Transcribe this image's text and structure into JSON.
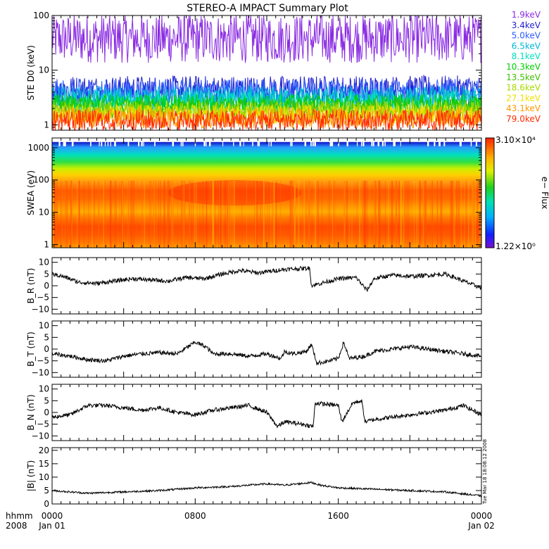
{
  "title": "STEREO-A IMPACT Summary Plot",
  "stamp": "Tue Mar 18 18:08:12 2008",
  "x_axis": {
    "row1_label": "hhmm",
    "row2_label": "2008",
    "ticks": [
      {
        "hours": 0,
        "hhmm": "0000",
        "date": "Jan 01"
      },
      {
        "hours": 8,
        "hhmm": "0800",
        "date": ""
      },
      {
        "hours": 16,
        "hhmm": "1600",
        "date": ""
      },
      {
        "hours": 24,
        "hhmm": "0000",
        "date": "Jan 02"
      }
    ]
  },
  "chart_data": [
    {
      "type": "line",
      "ylabel": "STE D0 (keV)",
      "yscale": "log",
      "ylim": [
        0.8,
        100
      ],
      "yticks": [
        {
          "v": 1,
          "t": "1"
        },
        {
          "v": 10,
          "t": "10"
        },
        {
          "v": 100,
          "t": "100"
        }
      ],
      "legend_placement": "right",
      "series": [
        {
          "name": "1.9keV",
          "color": "#8a2be2",
          "base": 38,
          "jitter": 0.45
        },
        {
          "name": "3.4keV",
          "color": "#1f1fd0",
          "base": 4.5,
          "jitter": 0.25
        },
        {
          "name": "5.0keV",
          "color": "#2a5cff",
          "base": 3.9,
          "jitter": 0.25
        },
        {
          "name": "6.5keV",
          "color": "#00b7d8",
          "base": 3.1,
          "jitter": 0.22
        },
        {
          "name": "8.1keV",
          "color": "#00e0c0",
          "base": 2.7,
          "jitter": 0.2
        },
        {
          "name": "10.3keV",
          "color": "#00d000",
          "base": 2.4,
          "jitter": 0.18
        },
        {
          "name": "13.5keV",
          "color": "#40c000",
          "base": 2.0,
          "jitter": 0.18
        },
        {
          "name": "18.6keV",
          "color": "#a8d800",
          "base": 1.8,
          "jitter": 0.18
        },
        {
          "name": "27.1keV",
          "color": "#f0e000",
          "base": 1.55,
          "jitter": 0.18
        },
        {
          "name": "43.1keV",
          "color": "#ff9a00",
          "base": 1.35,
          "jitter": 0.2
        },
        {
          "name": "79.0keV",
          "color": "#ff2a00",
          "base": 1.2,
          "jitter": 0.2
        }
      ]
    },
    {
      "type": "heatmap",
      "ylabel": "SWEA (eV)",
      "yscale": "log",
      "ylim": [
        0.8,
        2000
      ],
      "yticks": [
        {
          "v": 1,
          "t": "1"
        },
        {
          "v": 10,
          "t": "10"
        },
        {
          "v": 100,
          "t": "100"
        },
        {
          "v": 1000,
          "t": "1000"
        }
      ],
      "colorbar": {
        "max": "3.10×10⁴",
        "min": "1.22×10⁰",
        "label": "e− Flux",
        "placement": "right"
      }
    },
    {
      "type": "line",
      "ylabel": "B_R (nT)",
      "ylim": [
        -12,
        12
      ],
      "yticks": [
        {
          "v": -10,
          "t": "−10"
        },
        {
          "v": -5,
          "t": "−5"
        },
        {
          "v": 0,
          "t": "0"
        },
        {
          "v": 5,
          "t": "5"
        },
        {
          "v": 10,
          "t": "10"
        }
      ],
      "keypoints": [
        [
          0,
          5
        ],
        [
          0.6,
          4
        ],
        [
          1.5,
          1.5
        ],
        [
          2.5,
          1
        ],
        [
          3.5,
          2
        ],
        [
          4.5,
          3
        ],
        [
          5.5,
          2.5
        ],
        [
          6.5,
          2
        ],
        [
          7.5,
          3.5
        ],
        [
          8.5,
          3
        ],
        [
          9.5,
          5
        ],
        [
          10.5,
          6.5
        ],
        [
          11.5,
          5.5
        ],
        [
          12,
          6
        ],
        [
          13,
          7
        ],
        [
          14.4,
          7.5
        ],
        [
          14.5,
          0
        ],
        [
          15,
          1
        ],
        [
          16,
          3
        ],
        [
          17,
          3.5
        ],
        [
          17.6,
          -2
        ],
        [
          18,
          3
        ],
        [
          19,
          4.5
        ],
        [
          20,
          4
        ],
        [
          21,
          4.5
        ],
        [
          22,
          5
        ],
        [
          23,
          2
        ],
        [
          24,
          -1
        ]
      ],
      "noise": 0.9
    },
    {
      "type": "line",
      "ylabel": "B_T (nT)",
      "ylim": [
        -12,
        12
      ],
      "yticks": [
        {
          "v": -10,
          "t": "−10"
        },
        {
          "v": -5,
          "t": "−5"
        },
        {
          "v": 0,
          "t": "0"
        },
        {
          "v": 5,
          "t": "5"
        },
        {
          "v": 10,
          "t": "10"
        }
      ],
      "keypoints": [
        [
          0,
          -2
        ],
        [
          1,
          -3
        ],
        [
          2,
          -4.5
        ],
        [
          3,
          -5
        ],
        [
          4,
          -3
        ],
        [
          5,
          -2
        ],
        [
          6,
          -1.5
        ],
        [
          7,
          -2
        ],
        [
          8,
          3
        ],
        [
          8.6,
          1
        ],
        [
          9,
          -2
        ],
        [
          10,
          -2
        ],
        [
          11,
          -3
        ],
        [
          12,
          -2
        ],
        [
          12.8,
          -4
        ],
        [
          13,
          -1
        ],
        [
          13.5,
          -2
        ],
        [
          14.2,
          -1
        ],
        [
          14.5,
          2
        ],
        [
          14.8,
          -6
        ],
        [
          15.5,
          -5
        ],
        [
          16,
          -4
        ],
        [
          16.3,
          3
        ],
        [
          16.6,
          -4
        ],
        [
          17.5,
          -3
        ],
        [
          18,
          -1
        ],
        [
          19,
          0
        ],
        [
          20,
          1
        ],
        [
          21,
          0
        ],
        [
          22,
          -1
        ],
        [
          23,
          -2
        ],
        [
          24,
          -3
        ]
      ],
      "noise": 0.9
    },
    {
      "type": "line",
      "ylabel": "B_N (nT)",
      "ylim": [
        -12,
        12
      ],
      "yticks": [
        {
          "v": -10,
          "t": "−10"
        },
        {
          "v": -5,
          "t": "−5"
        },
        {
          "v": 0,
          "t": "0"
        },
        {
          "v": 5,
          "t": "5"
        },
        {
          "v": 10,
          "t": "10"
        }
      ],
      "keypoints": [
        [
          0,
          -2
        ],
        [
          1,
          -1
        ],
        [
          2,
          3
        ],
        [
          3,
          3
        ],
        [
          4,
          2
        ],
        [
          5,
          1
        ],
        [
          6,
          2
        ],
        [
          7,
          0
        ],
        [
          8,
          -1
        ],
        [
          9,
          1
        ],
        [
          10,
          2
        ],
        [
          11,
          3
        ],
        [
          12,
          0
        ],
        [
          12.6,
          -6
        ],
        [
          13,
          -4
        ],
        [
          14,
          -5
        ],
        [
          14.6,
          -6
        ],
        [
          14.7,
          4
        ],
        [
          16,
          3
        ],
        [
          16.2,
          -4
        ],
        [
          16.8,
          4
        ],
        [
          17.3,
          5
        ],
        [
          17.5,
          -4
        ],
        [
          18,
          -3
        ],
        [
          19,
          -2
        ],
        [
          20,
          -1
        ],
        [
          21,
          0
        ],
        [
          22,
          1
        ],
        [
          23,
          3
        ],
        [
          24,
          -1
        ]
      ],
      "noise": 0.9
    },
    {
      "type": "line",
      "ylabel": "|B| (nT)",
      "ylim": [
        0,
        21
      ],
      "yticks": [
        {
          "v": 0,
          "t": "0"
        },
        {
          "v": 5,
          "t": "5"
        },
        {
          "v": 10,
          "t": "10"
        },
        {
          "v": 15,
          "t": "15"
        },
        {
          "v": 20,
          "t": "20"
        }
      ],
      "keypoints": [
        [
          0,
          5
        ],
        [
          2,
          4
        ],
        [
          4,
          4.5
        ],
        [
          6,
          5
        ],
        [
          8,
          6
        ],
        [
          10,
          6.5
        ],
        [
          12,
          7.5
        ],
        [
          13,
          7
        ],
        [
          14.5,
          8
        ],
        [
          15,
          7
        ],
        [
          16,
          6
        ],
        [
          18,
          5.5
        ],
        [
          20,
          5
        ],
        [
          22,
          4.5
        ],
        [
          24,
          3
        ]
      ],
      "noise": 0.35
    }
  ]
}
